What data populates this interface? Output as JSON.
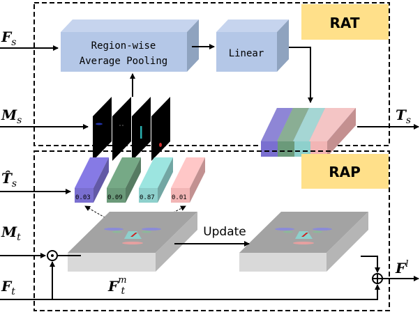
{
  "modules": {
    "rat": {
      "label": "RAT",
      "label_color": "#ffe08a"
    },
    "rap": {
      "label": "RAP",
      "label_color": "#ffe08a"
    }
  },
  "blocks": {
    "pooling": {
      "line1": "Region-wise",
      "line2": "Average Pooling",
      "color": "#b4c7e7"
    },
    "linear": {
      "label": "Linear",
      "color": "#b4c7e7"
    }
  },
  "inputs": {
    "F_s": {
      "main": "F",
      "sub": "s"
    },
    "M_s": {
      "main": "M",
      "sub": "s"
    },
    "T_s": {
      "main": "T",
      "sub": "s"
    },
    "T_hat_s": {
      "main": "T̂",
      "sub": "s"
    },
    "M_t": {
      "main": "M",
      "sub": "t"
    },
    "F_t": {
      "main": "F",
      "sub": "t"
    },
    "F_t_m": {
      "main": "F",
      "sub": "t",
      "sup": "m"
    },
    "F_l": {
      "main": "F",
      "sup": "l"
    }
  },
  "region_colors": [
    "#7a6fd0",
    "#6b9a7a",
    "#8ed0cc",
    "#f2b5b5"
  ],
  "token_scores": [
    "0.03",
    "0.09",
    "0.87",
    "0.01"
  ],
  "update_label": "Update",
  "operators": {
    "multiply": "⊙",
    "add": "⊕"
  }
}
